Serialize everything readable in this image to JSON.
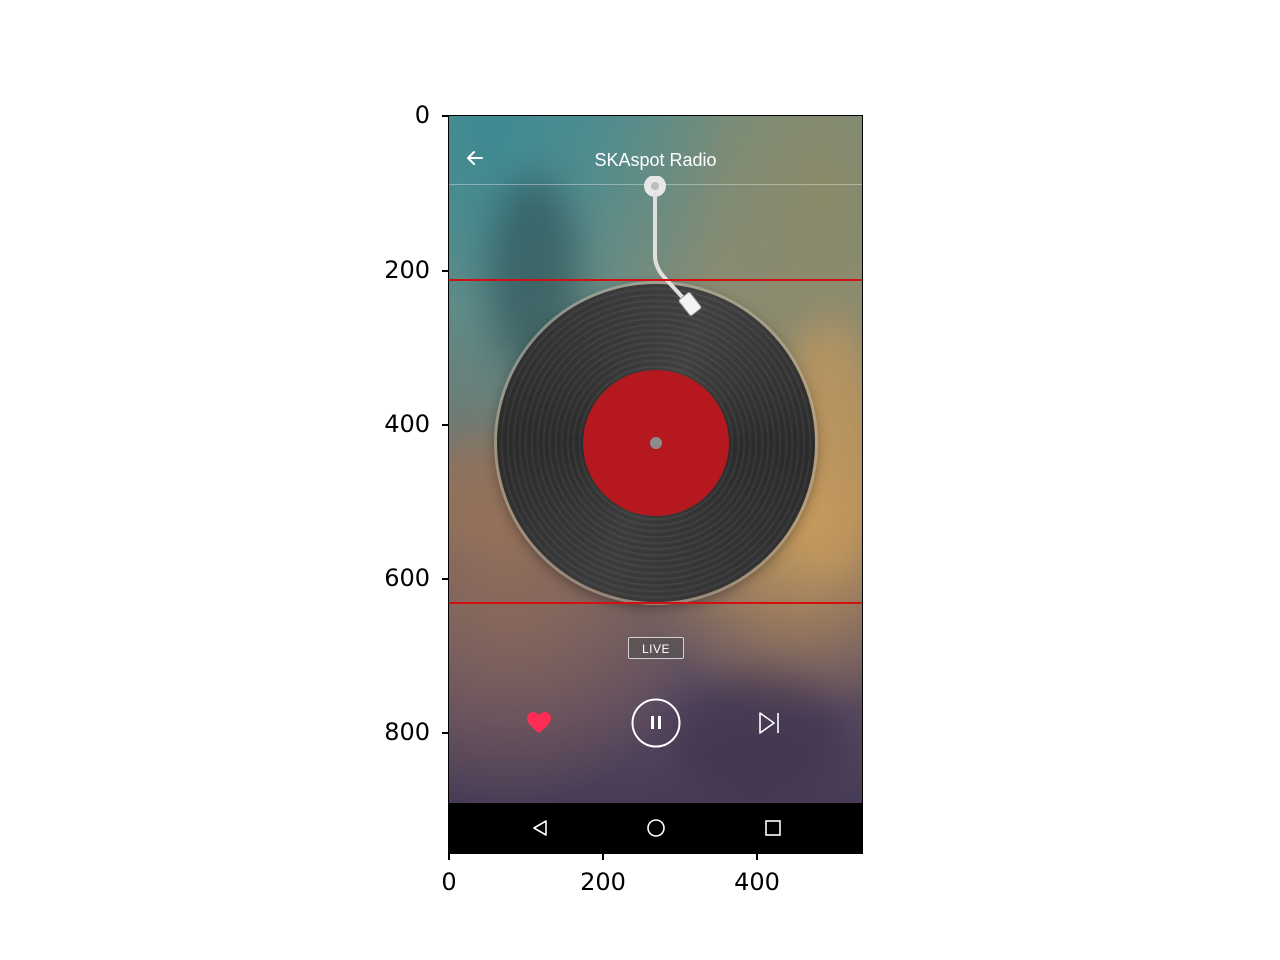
{
  "app": {
    "title": "SKAspot Radio",
    "back_icon": "arrow-left-icon",
    "status_badge": "LIVE"
  },
  "player": {
    "like_icon": "heart-icon",
    "pause_icon": "pause-icon",
    "next_icon": "skip-next-icon",
    "liked": true,
    "accent_color": "#ff2d55",
    "record_label_color": "#b5181e"
  },
  "navbar": {
    "back_icon": "nav-back-icon",
    "home_icon": "nav-home-icon",
    "recents_icon": "nav-recents-icon"
  },
  "axes": {
    "y_ticks": [
      "0",
      "200",
      "400",
      "600",
      "800"
    ],
    "x_ticks": [
      "0",
      "200",
      "400"
    ]
  },
  "overlay": {
    "line_color": "#d40f0f"
  }
}
